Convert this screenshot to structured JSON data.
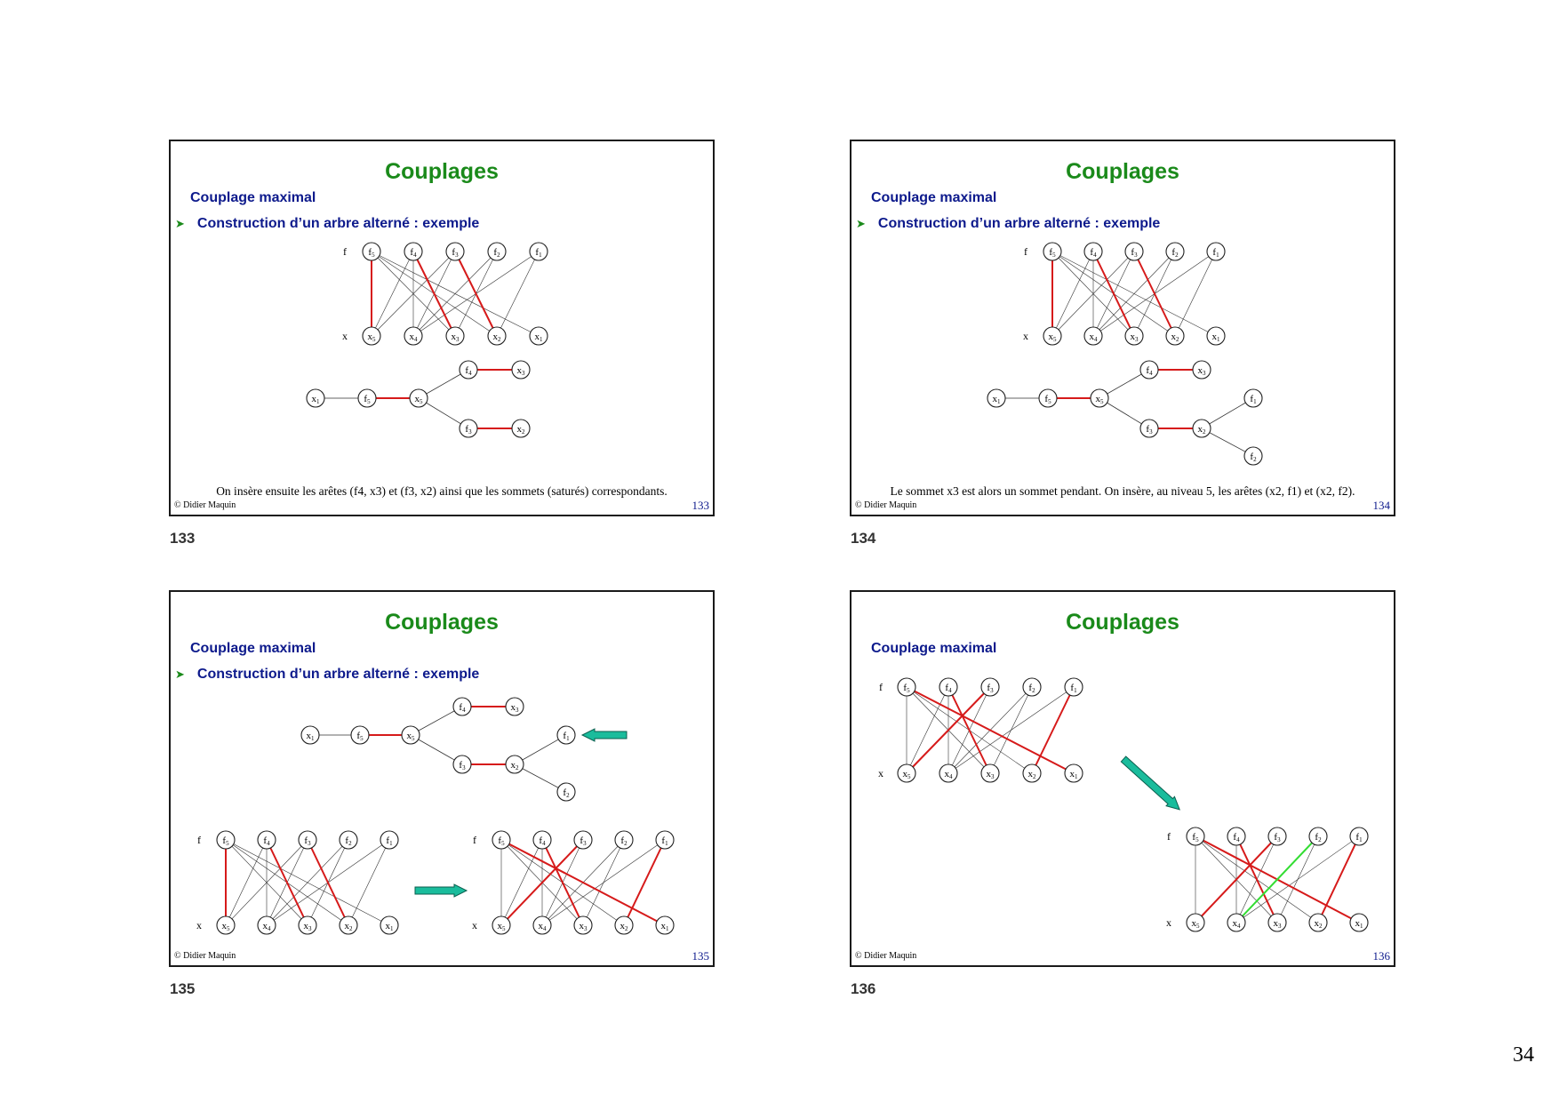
{
  "page_number": "34",
  "slides": [
    {
      "title": "Couplages",
      "subtitle": "Couplage maximal",
      "bullet": "Construction d’un arbre alterné : exemple",
      "caption": "On insère ensuite les arêtes (f4, x3) et (f3, x2) ainsi que les sommets (saturés) correspondants.",
      "copyright": "© Didier Maquin",
      "number": "133",
      "label": "133"
    },
    {
      "title": "Couplages",
      "subtitle": "Couplage maximal",
      "bullet": "Construction d’un arbre alterné : exemple",
      "caption": "Le sommet x3 est alors un sommet pendant. On insère, au niveau 5, les arêtes (x2, f1) et (x2, f2).",
      "copyright": "© Didier Maquin",
      "number": "134",
      "label": "134"
    },
    {
      "title": "Couplages",
      "subtitle": "Couplage maximal",
      "bullet": "Construction d’un arbre alterné : exemple",
      "caption": "",
      "copyright": "© Didier Maquin",
      "number": "135",
      "label": "135"
    },
    {
      "title": "Couplages",
      "subtitle": "Couplage maximal",
      "bullet": "",
      "caption": "",
      "copyright": "© Didier Maquin",
      "number": "136",
      "label": "136"
    }
  ],
  "graph_labels": {
    "row_f": "f",
    "row_x": "x",
    "f_nodes": [
      "f5",
      "f4",
      "f3",
      "f2",
      "f1"
    ],
    "x_nodes": [
      "x5",
      "x4",
      "x3",
      "x2",
      "x1"
    ]
  },
  "colors": {
    "title": "#1a8a1a",
    "subtitle": "#0d1a8c",
    "matched_edge": "#d61a1a",
    "augmented_edge": "#33dd33",
    "arrow": "#1abc9c"
  }
}
